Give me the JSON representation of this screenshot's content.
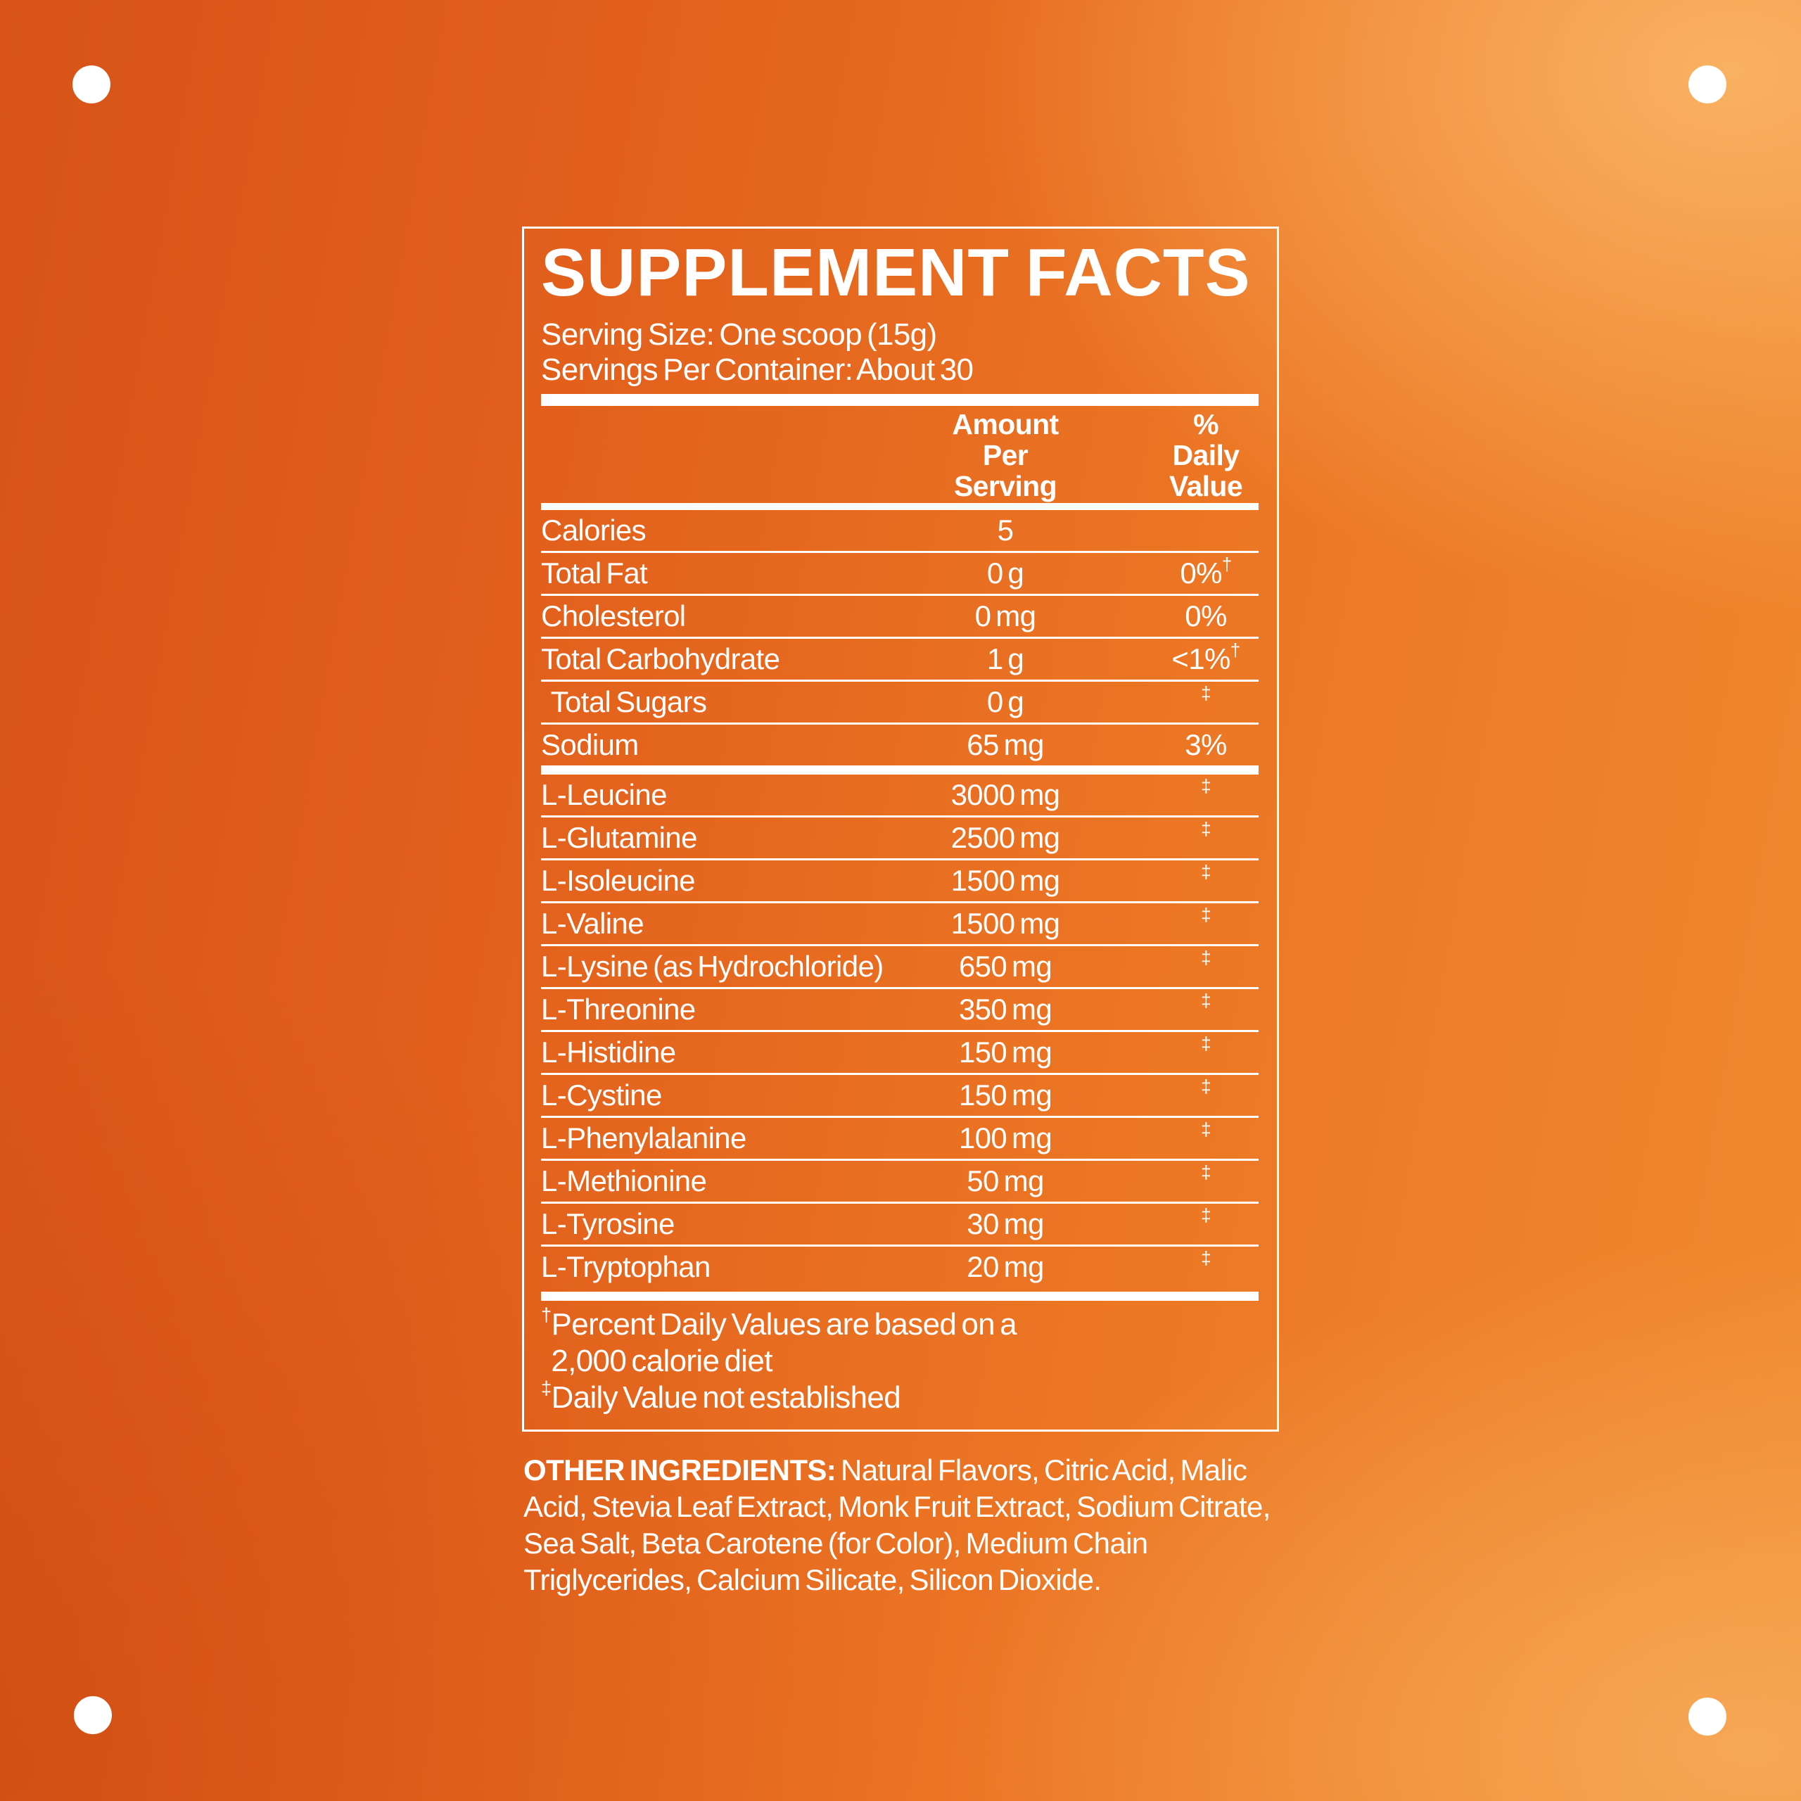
{
  "background": {
    "base_left_color": "#d75318",
    "base_mid_color": "#ec7624",
    "highlight_color": "#f5a34c",
    "dot_color": "#ffffff",
    "text_color": "#ffffff"
  },
  "label": {
    "title": "SUPPLEMENT FACTS",
    "serving_size": "Serving Size: One scoop (15g)",
    "servings_per_container": "Servings Per Container: About 30",
    "header": {
      "amount_lines": [
        "Amount",
        "Per",
        "Serving"
      ],
      "dv_lines": [
        "%",
        "Daily",
        "Value"
      ]
    },
    "macro_rows": [
      {
        "name": "Calories",
        "amount": "5",
        "dv": "",
        "mark": ""
      },
      {
        "name": "Total Fat",
        "amount": "0 g",
        "dv": "0%",
        "mark": "†"
      },
      {
        "name": "Cholesterol",
        "amount": "0 mg",
        "dv": "0%",
        "mark": ""
      },
      {
        "name": "Total Carbohydrate",
        "amount": "1 g",
        "dv": "<1%",
        "mark": "†"
      },
      {
        "name": "  Total Sugars",
        "amount": "0 g",
        "dv": "",
        "mark": "‡"
      },
      {
        "name": "Sodium",
        "amount": "65 mg",
        "dv": "3%",
        "mark": ""
      }
    ],
    "amino_rows": [
      {
        "name": "L-Leucine",
        "amount": "3000 mg",
        "dv": "",
        "mark": "‡"
      },
      {
        "name": "L-Glutamine",
        "amount": "2500 mg",
        "dv": "",
        "mark": "‡"
      },
      {
        "name": "L-Isoleucine",
        "amount": "1500 mg",
        "dv": "",
        "mark": "‡"
      },
      {
        "name": "L-Valine",
        "amount": "1500 mg",
        "dv": "",
        "mark": "‡"
      },
      {
        "name": "L-Lysine (as Hydrochloride)",
        "amount": "650 mg",
        "dv": "",
        "mark": "‡"
      },
      {
        "name": "L-Threonine",
        "amount": "350 mg",
        "dv": "",
        "mark": "‡"
      },
      {
        "name": "L-Histidine",
        "amount": "150 mg",
        "dv": "",
        "mark": "‡"
      },
      {
        "name": "L-Cystine",
        "amount": "150 mg",
        "dv": "",
        "mark": "‡"
      },
      {
        "name": "L-Phenylalanine",
        "amount": "100 mg",
        "dv": "",
        "mark": "‡"
      },
      {
        "name": "L-Methionine",
        "amount": "50 mg",
        "dv": "",
        "mark": "‡"
      },
      {
        "name": "L-Tyrosine",
        "amount": "30 mg",
        "dv": "",
        "mark": "‡"
      },
      {
        "name": "L-Tryptophan",
        "amount": "20 mg",
        "dv": "",
        "mark": "‡"
      }
    ],
    "footnotes": [
      {
        "mark": "†",
        "text": "Percent Daily Values are based on a"
      },
      {
        "mark": "",
        "text": "  2,000 calorie diet"
      },
      {
        "mark": "‡",
        "text": "Daily Value not established"
      }
    ]
  },
  "other_ingredients": {
    "lead": "OTHER INGREDIENTS:",
    "text": " Natural Flavors, Citric Acid, Malic Acid, Stevia Leaf Extract, Monk Fruit Extract, Sodium Citrate, Sea Salt, Beta Carotene (for Color), Medium Chain Triglycerides, Calcium Silicate, Silicon Dioxide."
  }
}
